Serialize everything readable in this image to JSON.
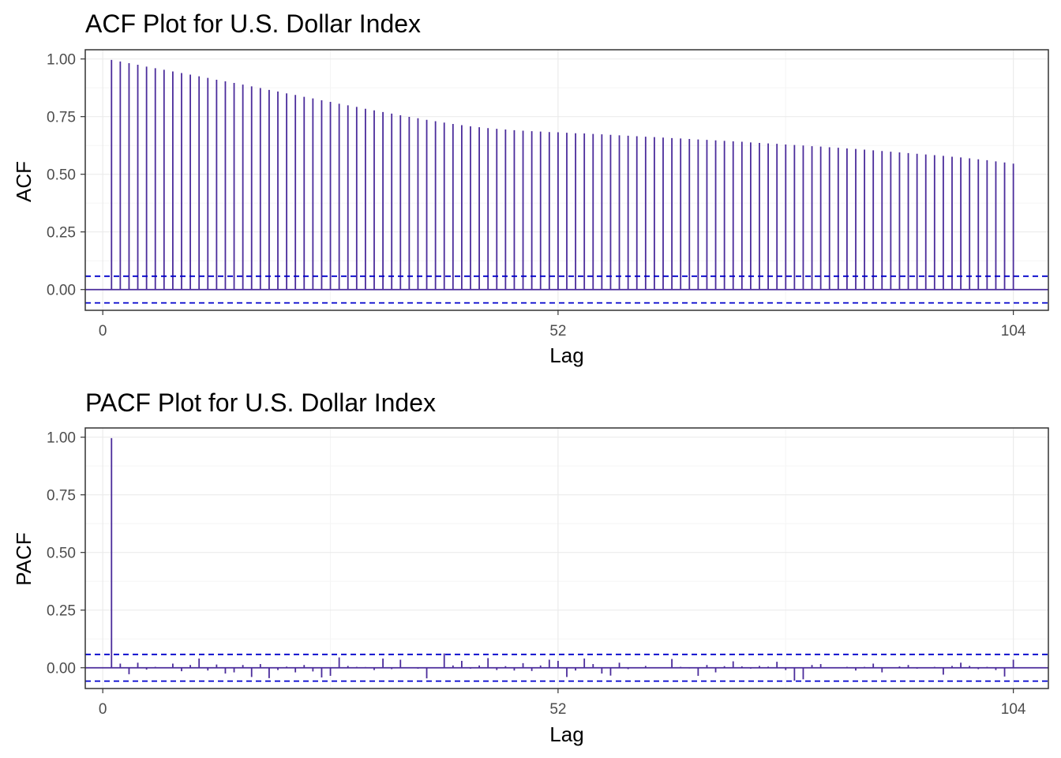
{
  "chart_data": [
    {
      "type": "bar",
      "title": "ACF Plot for U.S. Dollar Index",
      "xlabel": "Lag",
      "ylabel": "ACF",
      "xlim": [
        -2,
        108
      ],
      "ylim": [
        -0.09,
        1.04
      ],
      "xticks": [
        0,
        52,
        104
      ],
      "yticks": [
        0.0,
        0.25,
        0.5,
        0.75,
        1.0
      ],
      "ytick_labels": [
        "0.00",
        "0.25",
        "0.50",
        "0.75",
        "1.00"
      ],
      "confidence_band": [
        -0.0578,
        0.0578
      ],
      "grid": true,
      "colors": {
        "bars": "#4b2c9b",
        "band": "#0000cc",
        "panel_border": "#333333",
        "grid": "#ebebeb"
      },
      "lags": [
        1,
        2,
        3,
        4,
        5,
        6,
        7,
        8,
        9,
        10,
        11,
        12,
        13,
        14,
        15,
        16,
        17,
        18,
        19,
        20,
        21,
        22,
        23,
        24,
        25,
        26,
        27,
        28,
        29,
        30,
        31,
        32,
        33,
        34,
        35,
        36,
        37,
        38,
        39,
        40,
        41,
        42,
        43,
        44,
        45,
        46,
        47,
        48,
        49,
        50,
        51,
        52,
        53,
        54,
        55,
        56,
        57,
        58,
        59,
        60,
        61,
        62,
        63,
        64,
        65,
        66,
        67,
        68,
        69,
        70,
        71,
        72,
        73,
        74,
        75,
        76,
        77,
        78,
        79,
        80,
        81,
        82,
        83,
        84,
        85,
        86,
        87,
        88,
        89,
        90,
        91,
        92,
        93,
        94,
        95,
        96,
        97,
        98,
        99,
        100,
        101,
        102,
        103,
        104
      ],
      "values": [
        0.996,
        0.989,
        0.982,
        0.975,
        0.967,
        0.96,
        0.953,
        0.946,
        0.939,
        0.932,
        0.925,
        0.918,
        0.91,
        0.903,
        0.896,
        0.889,
        0.881,
        0.874,
        0.866,
        0.859,
        0.851,
        0.844,
        0.836,
        0.829,
        0.821,
        0.814,
        0.806,
        0.799,
        0.792,
        0.784,
        0.777,
        0.77,
        0.763,
        0.756,
        0.749,
        0.743,
        0.736,
        0.73,
        0.724,
        0.718,
        0.713,
        0.708,
        0.704,
        0.7,
        0.697,
        0.694,
        0.691,
        0.689,
        0.687,
        0.685,
        0.683,
        0.682,
        0.68,
        0.678,
        0.677,
        0.675,
        0.673,
        0.671,
        0.669,
        0.667,
        0.665,
        0.663,
        0.661,
        0.659,
        0.657,
        0.655,
        0.653,
        0.651,
        0.649,
        0.647,
        0.645,
        0.643,
        0.641,
        0.638,
        0.636,
        0.634,
        0.632,
        0.629,
        0.627,
        0.625,
        0.622,
        0.62,
        0.617,
        0.615,
        0.612,
        0.61,
        0.607,
        0.604,
        0.601,
        0.598,
        0.595,
        0.592,
        0.589,
        0.586,
        0.583,
        0.58,
        0.576,
        0.573,
        0.569,
        0.565,
        0.561,
        0.556,
        0.551,
        0.546
      ]
    },
    {
      "type": "bar",
      "title": "PACF Plot for U.S. Dollar Index",
      "xlabel": "Lag",
      "ylabel": "PACF",
      "xlim": [
        -2,
        108
      ],
      "ylim": [
        -0.09,
        1.04
      ],
      "xticks": [
        0,
        52,
        104
      ],
      "yticks": [
        0.0,
        0.25,
        0.5,
        0.75,
        1.0
      ],
      "ytick_labels": [
        "0.00",
        "0.25",
        "0.50",
        "0.75",
        "1.00"
      ],
      "confidence_band": [
        -0.0578,
        0.0578
      ],
      "grid": true,
      "colors": {
        "bars": "#4b2c9b",
        "band": "#0000cc",
        "panel_border": "#333333",
        "grid": "#ebebeb"
      },
      "lags": [
        1,
        2,
        3,
        4,
        5,
        6,
        7,
        8,
        9,
        10,
        11,
        12,
        13,
        14,
        15,
        16,
        17,
        18,
        19,
        20,
        21,
        22,
        23,
        24,
        25,
        26,
        27,
        28,
        29,
        30,
        31,
        32,
        33,
        34,
        35,
        36,
        37,
        38,
        39,
        40,
        41,
        42,
        43,
        44,
        45,
        46,
        47,
        48,
        49,
        50,
        51,
        52,
        53,
        54,
        55,
        56,
        57,
        58,
        59,
        60,
        61,
        62,
        63,
        64,
        65,
        66,
        67,
        68,
        69,
        70,
        71,
        72,
        73,
        74,
        75,
        76,
        77,
        78,
        79,
        80,
        81,
        82,
        83,
        84,
        85,
        86,
        87,
        88,
        89,
        90,
        91,
        92,
        93,
        94,
        95,
        96,
        97,
        98,
        99,
        100,
        101,
        102,
        103,
        104
      ],
      "values": [
        0.996,
        0.018,
        -0.028,
        0.022,
        -0.008,
        0.004,
        0.002,
        0.018,
        -0.015,
        0.012,
        0.04,
        -0.012,
        0.014,
        -0.025,
        -0.02,
        0.012,
        -0.04,
        0.016,
        -0.045,
        -0.01,
        0.005,
        -0.02,
        0.012,
        -0.016,
        -0.042,
        -0.035,
        0.045,
        0.008,
        0.004,
        0.003,
        -0.01,
        0.04,
        -0.006,
        0.035,
        -0.001,
        -0.004,
        -0.046,
        0.002,
        0.062,
        0.01,
        0.03,
        -0.004,
        0.01,
        0.042,
        -0.01,
        0.007,
        -0.012,
        0.02,
        -0.014,
        0.01,
        0.035,
        0.03,
        -0.04,
        -0.012,
        0.04,
        0.016,
        -0.025,
        -0.034,
        0.022,
        -0.006,
        0.002,
        0.008,
        0.001,
        0.002,
        0.038,
        0.004,
        -0.003,
        -0.035,
        0.012,
        -0.02,
        0.007,
        0.028,
        0.006,
        -0.004,
        0.008,
        0.005,
        0.026,
        -0.01,
        -0.056,
        -0.05,
        0.012,
        0.016,
        0.002,
        -0.002,
        0.004,
        -0.012,
        0.004,
        0.018,
        -0.02,
        -0.002,
        0.006,
        0.012,
        -0.004,
        0.001,
        0.004,
        -0.03,
        0.008,
        0.022,
        0.008,
        -0.006,
        0.004,
        -0.01,
        -0.038,
        0.035
      ]
    }
  ]
}
